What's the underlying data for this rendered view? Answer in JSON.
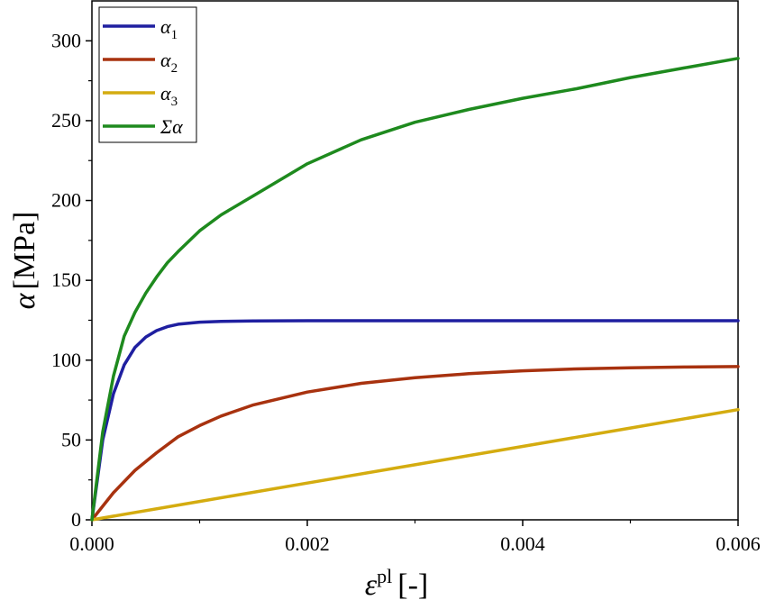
{
  "chart_data": {
    "type": "line",
    "xlabel": {
      "symbol": "ε",
      "superscript": "pl",
      "unit": "[-]"
    },
    "ylabel": {
      "symbol": "α",
      "unit": "[MPa]"
    },
    "xlim": [
      0,
      0.006
    ],
    "ylim": [
      0,
      325
    ],
    "xticks": [
      0,
      0.002,
      0.004,
      0.006
    ],
    "xtick_labels": [
      "0.000",
      "0.002",
      "0.004",
      "0.006"
    ],
    "yticks": [
      0,
      50,
      100,
      150,
      200,
      250,
      300
    ],
    "ytick_labels": [
      "0",
      "50",
      "100",
      "150",
      "200",
      "250",
      "300"
    ],
    "grid": false,
    "legend_position": "top-left",
    "series": [
      {
        "name": "α1",
        "legend_base": "α",
        "legend_sub": "1",
        "color": "#1f1fa0",
        "x": [
          0,
          0.0001,
          0.0002,
          0.0003,
          0.0004,
          0.0005,
          0.0006,
          0.0007,
          0.0008,
          0.001,
          0.0012,
          0.0015,
          0.002,
          0.003,
          0.004,
          0.005,
          0.006
        ],
        "y": [
          0,
          50,
          79,
          97,
          108,
          114.5,
          118.5,
          121,
          122.5,
          123.8,
          124.3,
          124.6,
          124.7,
          124.7,
          124.7,
          124.7,
          124.7
        ]
      },
      {
        "name": "α2",
        "legend_base": "α",
        "legend_sub": "2",
        "color": "#a8320f",
        "x": [
          0,
          0.0002,
          0.0004,
          0.0006,
          0.0008,
          0.001,
          0.0012,
          0.0015,
          0.002,
          0.0025,
          0.003,
          0.0035,
          0.004,
          0.0045,
          0.005,
          0.0055,
          0.006
        ],
        "y": [
          0,
          17,
          31,
          42,
          52,
          59,
          65,
          72,
          80,
          85.5,
          89,
          91.5,
          93.3,
          94.5,
          95.2,
          95.7,
          96
        ]
      },
      {
        "name": "α3",
        "legend_base": "α",
        "legend_sub": "3",
        "color": "#d4ac10",
        "x": [
          0,
          0.001,
          0.002,
          0.003,
          0.004,
          0.005,
          0.006
        ],
        "y": [
          0,
          11.5,
          23,
          34.5,
          46,
          57.5,
          69
        ]
      },
      {
        "name": "Σα",
        "legend_base": "Σα",
        "legend_sub": "",
        "color": "#1e8a1e",
        "x": [
          0,
          0.0001,
          0.0002,
          0.0003,
          0.0004,
          0.0005,
          0.0006,
          0.0007,
          0.0008,
          0.001,
          0.0012,
          0.0015,
          0.002,
          0.0025,
          0.003,
          0.0035,
          0.004,
          0.0045,
          0.005,
          0.0055,
          0.006
        ],
        "y": [
          0,
          55,
          90,
          115,
          130,
          142,
          152,
          161,
          168,
          181,
          191,
          203,
          223,
          238,
          249,
          257,
          264,
          270,
          277,
          283,
          289
        ]
      }
    ]
  }
}
